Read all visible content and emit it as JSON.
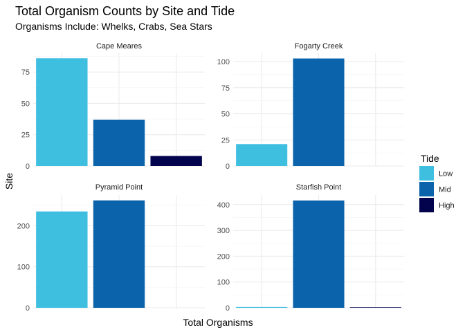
{
  "chart_data": {
    "type": "bar",
    "title": "Total Organism Counts by Site and Tide",
    "subtitle": "Organisms Include: Whelks, Crabs, Sea Stars",
    "xlabel": "Total Organisms",
    "ylabel": "Site",
    "legend": {
      "title": "Tide",
      "position": "right",
      "entries": [
        "Low",
        "Mid",
        "High"
      ]
    },
    "colors": {
      "Low": "#3fbfe0",
      "Mid": "#0b63ab",
      "High": "#03034d"
    },
    "grid": true,
    "facets": [
      {
        "site": "Cape Meares",
        "ylim": [
          0,
          90
        ],
        "yticks": [
          0,
          25,
          50,
          75
        ],
        "values": {
          "Low": 86,
          "Mid": 37,
          "High": 8
        }
      },
      {
        "site": "Fogarty Creek",
        "ylim": [
          0,
          108
        ],
        "yticks": [
          0,
          25,
          50,
          75,
          100
        ],
        "values": {
          "Low": 21,
          "Mid": 103,
          "High": 0
        }
      },
      {
        "site": "Pyramid Point",
        "ylim": [
          0,
          275
        ],
        "yticks": [
          0,
          100,
          200
        ],
        "values": {
          "Low": 235,
          "Mid": 262,
          "High": 0
        }
      },
      {
        "site": "Starfish Point",
        "ylim": [
          0,
          437
        ],
        "yticks": [
          0,
          100,
          200,
          300,
          400
        ],
        "values": {
          "Low": 3,
          "Mid": 416,
          "High": 2
        }
      }
    ]
  }
}
